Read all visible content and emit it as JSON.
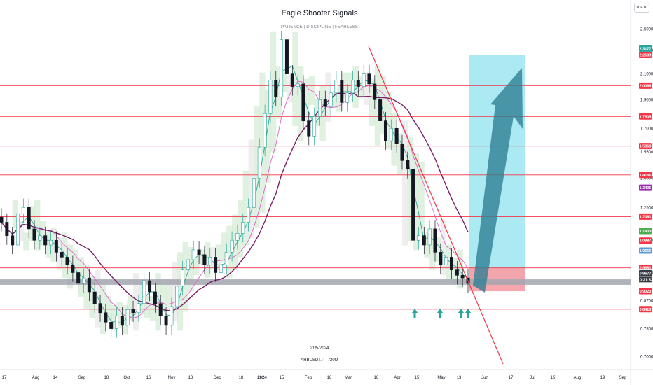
{
  "chart_data": {
    "type": "candlestick",
    "title": "Eagle Shooter Signals",
    "subtitle": "PATIENCE | DISCIPLINE | FEARLESS",
    "symbol_label": "ARBUSDT.P | 720M",
    "date_label": "21/5/2024",
    "currency": "USDT",
    "y_axis_ticks": [
      "2.5000",
      "2.3000",
      "2.1000",
      "1.9000",
      "1.7000",
      "1.5500",
      "1.4000",
      "1.2500",
      "1.1000",
      "0.9700",
      "0.8700",
      "0.7800",
      "0.7000"
    ],
    "x_axis_ticks": [
      "17",
      "Aug",
      "14",
      "Sep",
      "18",
      "Oct",
      "16",
      "Nov",
      "13",
      "Dec",
      "18",
      "2024",
      "15",
      "Feb",
      "18",
      "Mar",
      "18",
      "Apr",
      "15",
      "May",
      "13",
      "Jun",
      "17",
      "Jul",
      "15",
      "Aug",
      "19",
      "Sep"
    ],
    "ylim": [
      0.68,
      2.58
    ],
    "horizontal_levels": [
      {
        "label": "2.2609",
        "value": 2.2609
      },
      {
        "label": "2.0068",
        "value": 2.0068
      },
      {
        "label": "1.7805",
        "value": 1.7805
      },
      {
        "label": "1.5868",
        "value": 1.5868
      },
      {
        "label": "1.4186",
        "value": 1.4186
      },
      {
        "label": "1.2061",
        "value": 1.2061
      },
      {
        "label": "0.9881",
        "value": 0.9881
      },
      {
        "label": "0.8413",
        "value": 0.8413
      }
    ],
    "price_tags": [
      {
        "label": "2.3177",
        "value": 2.3177,
        "color": "#26a69a"
      },
      {
        "label": "2.2609",
        "value": 2.2609,
        "color": "#f23645"
      },
      {
        "label": "2.0068",
        "value": 2.0068,
        "color": "#f23645"
      },
      {
        "label": "1.7805",
        "value": 1.7805,
        "color": "#f23645"
      },
      {
        "label": "1.5868",
        "value": 1.5868,
        "color": "#f23645"
      },
      {
        "label": "1.4186",
        "value": 1.4186,
        "color": "#f23645"
      },
      {
        "label": "1.3495",
        "value": 1.3495,
        "color": "#9c27b0"
      },
      {
        "label": "1.2061",
        "value": 1.2061,
        "color": "#f23645"
      },
      {
        "label": "1.1403",
        "value": 1.1403,
        "color": "#4caf50"
      },
      {
        "label": "1.0987",
        "value": 1.0987,
        "color": "#f23645"
      },
      {
        "label": "1.0566",
        "value": 1.0566,
        "color": "#5b9bd5"
      },
      {
        "label": "0.9881",
        "value": 0.9881,
        "color": "#f23645"
      },
      {
        "label": "0.9700",
        "value": 0.97,
        "color": "#ffffff"
      },
      {
        "label": "0.9677",
        "value": 0.9677,
        "color": "#363a45"
      },
      {
        "label": "0.9023",
        "value": 0.9023,
        "color": "#f23645"
      },
      {
        "label": "0.8413",
        "value": 0.8413,
        "color": "#f23645"
      }
    ],
    "countdown_label": "10:21:53",
    "support_zone": {
      "low": 0.925,
      "high": 0.945
    },
    "target_box": {
      "low": 0.945,
      "high": 2.2609
    },
    "stop_box": {
      "low": 0.9023,
      "high": 0.9881
    },
    "closes": [
      1.18,
      1.12,
      1.08,
      1.22,
      1.25,
      1.15,
      1.1,
      1.12,
      1.08,
      1.1,
      1.05,
      1.03,
      1.0,
      0.97,
      0.93,
      0.95,
      0.9,
      0.86,
      0.83,
      0.8,
      0.78,
      0.82,
      0.79,
      0.84,
      0.83,
      0.86,
      0.94,
      0.9,
      0.86,
      0.82,
      0.79,
      0.85,
      0.92,
      0.98,
      1.02,
      1.06,
      1.04,
      1.0,
      1.03,
      0.97,
      1.0,
      1.05,
      1.1,
      1.13,
      1.18,
      1.25,
      1.4,
      1.58,
      1.8,
      2.05,
      1.92,
      2.4,
      2.1,
      2.0,
      2.02,
      1.75,
      1.65,
      1.78,
      1.9,
      1.85,
      1.95,
      2.05,
      1.88,
      1.95,
      2.05,
      2.0,
      2.1,
      2.02,
      1.9,
      1.75,
      1.62,
      1.7,
      1.6,
      1.5,
      1.45,
      1.1,
      1.12,
      1.08,
      1.15,
      1.05,
      1.0,
      1.03,
      0.98,
      0.96,
      0.95,
      0.93
    ],
    "signal_arrows": 4,
    "grid": false,
    "legend": "none"
  },
  "colors": {
    "level_line": "#f23645",
    "support_zone": "#a3a6af",
    "target_box": "#a7e8f2",
    "stop_box": "#f7a1a9",
    "trendline": "#f23645",
    "arrow_up": "#2f7f93",
    "bull": "#26a69a",
    "bear": "#131722",
    "ma_long": "#7b1f6a",
    "ma_mid": "#e060c8",
    "ma_short": "#26a69a",
    "cloud": "#c8e6c9",
    "cloud_grey": "#e0e0e0",
    "signal_arrow": "#26a69a"
  }
}
